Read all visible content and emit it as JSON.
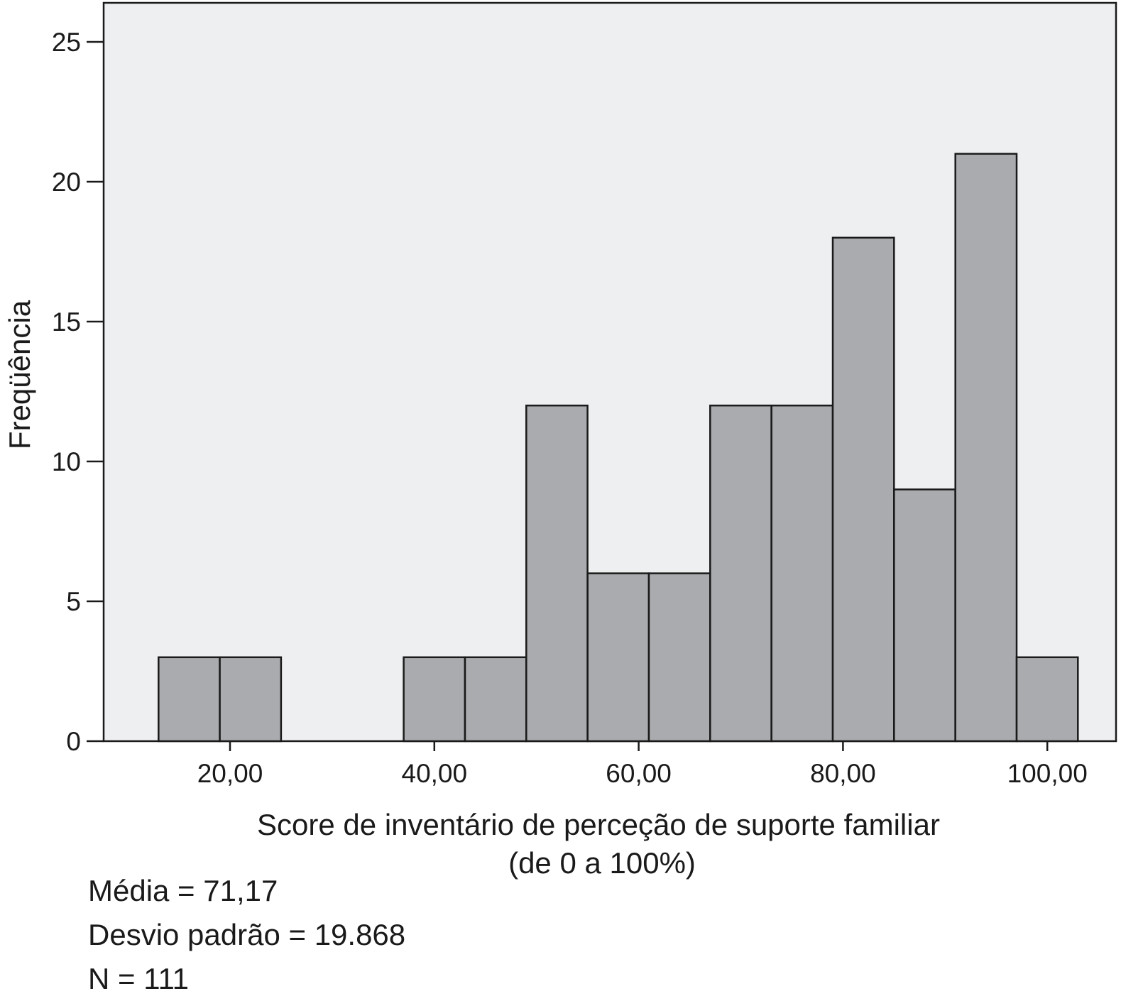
{
  "chart_data": {
    "type": "bar",
    "subtype": "histogram",
    "xlabel": "Score de inventário de perceção de suporte familiar",
    "xlabel_line2": "(de 0 a 100%)",
    "ylabel": "Freqüência",
    "xlim": [
      8,
      104
    ],
    "ylim": [
      0,
      25
    ],
    "x_ticks": [
      {
        "value": 20,
        "label": "20,00"
      },
      {
        "value": 40,
        "label": "40,00"
      },
      {
        "value": 60,
        "label": "60,00"
      },
      {
        "value": 80,
        "label": "80,00"
      },
      {
        "value": 100,
        "label": "100,00"
      }
    ],
    "y_ticks": [
      {
        "value": 0,
        "label": "0"
      },
      {
        "value": 5,
        "label": "5"
      },
      {
        "value": 10,
        "label": "10"
      },
      {
        "value": 15,
        "label": "15"
      },
      {
        "value": 20,
        "label": "20"
      },
      {
        "value": 25,
        "label": "25"
      }
    ],
    "bins": [
      {
        "start": 13,
        "end": 19,
        "count": 3
      },
      {
        "start": 19,
        "end": 25,
        "count": 3
      },
      {
        "start": 37,
        "end": 43,
        "count": 3
      },
      {
        "start": 43,
        "end": 49,
        "count": 3
      },
      {
        "start": 49,
        "end": 55,
        "count": 12
      },
      {
        "start": 55,
        "end": 61,
        "count": 6
      },
      {
        "start": 61,
        "end": 67,
        "count": 6
      },
      {
        "start": 67,
        "end": 73,
        "count": 12
      },
      {
        "start": 73,
        "end": 79,
        "count": 12
      },
      {
        "start": 79,
        "end": 85,
        "count": 18
      },
      {
        "start": 85,
        "end": 91,
        "count": 9
      },
      {
        "start": 91,
        "end": 97,
        "count": 21
      },
      {
        "start": 97,
        "end": 103,
        "count": 3
      }
    ],
    "grid": false,
    "colors": {
      "plot_background": "#eeeff1",
      "bar_fill": "#a9abae",
      "bar_stroke": "#1a1a1a"
    }
  },
  "stats": {
    "mean": "Média = 71,17",
    "std": "Desvio padrão = 19.868",
    "n": "N = 111"
  }
}
